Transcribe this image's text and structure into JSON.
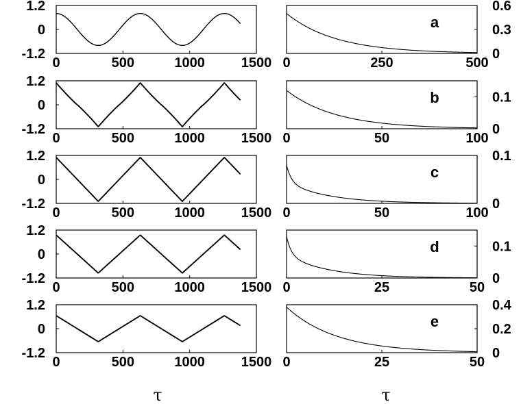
{
  "chart_data": [
    {
      "type": "line",
      "panel": "a",
      "side": "left",
      "xlim": [
        0,
        1500
      ],
      "ylim": [
        -1.2,
        1.2
      ],
      "xticks": [
        "0",
        "500",
        "1000",
        "1500"
      ],
      "yticks": [
        "1.2",
        "0",
        "-1.2"
      ],
      "wave": "sine",
      "amplitude": 0.8,
      "period": 630,
      "x_end": 1380
    },
    {
      "type": "line",
      "panel": "a",
      "side": "right",
      "label": "a",
      "xlim": [
        0,
        500
      ],
      "ylim": [
        0,
        0.6
      ],
      "xticks": [
        "0",
        "250",
        "500"
      ],
      "yticks": [
        "0.6",
        "0.3",
        "0"
      ],
      "y0": 0.5,
      "shape": "exponential-decay"
    },
    {
      "type": "line",
      "panel": "b",
      "side": "left",
      "xlim": [
        0,
        1500
      ],
      "ylim": [
        -1.2,
        1.2
      ],
      "xticks": [
        "0",
        "500",
        "1000",
        "1500"
      ],
      "yticks": [
        "1.2",
        "0",
        "-1.2"
      ],
      "wave": "rounded-triangle",
      "amplitude": 1.1,
      "period": 630,
      "x_end": 1380
    },
    {
      "type": "line",
      "panel": "b",
      "side": "right",
      "label": "b",
      "xlim": [
        0,
        100
      ],
      "ylim": [
        0,
        0.15
      ],
      "xticks": [
        "0",
        "50",
        "100"
      ],
      "yticks": [
        "0.1",
        "0"
      ],
      "y0": 0.12,
      "shape": "exponential-decay"
    },
    {
      "type": "line",
      "panel": "c",
      "side": "left",
      "xlim": [
        0,
        1500
      ],
      "ylim": [
        -1.2,
        1.2
      ],
      "xticks": [
        "0",
        "500",
        "1000",
        "1500"
      ],
      "yticks": [
        "1.2",
        "0",
        "-1.2"
      ],
      "wave": "triangle",
      "amplitude": 1.1,
      "period": 630,
      "x_end": 1380
    },
    {
      "type": "line",
      "panel": "c",
      "side": "right",
      "label": "c",
      "xlim": [
        0,
        100
      ],
      "ylim": [
        0,
        0.1
      ],
      "xticks": [
        "0",
        "50",
        "100"
      ],
      "yticks": [
        "0.1",
        "0"
      ],
      "y0": 0.08,
      "shape": "fast-decay"
    },
    {
      "type": "line",
      "panel": "d",
      "side": "left",
      "xlim": [
        0,
        1500
      ],
      "ylim": [
        -1.2,
        1.2
      ],
      "xticks": [
        "0",
        "500",
        "1000",
        "1500"
      ],
      "yticks": [
        "1.2",
        "0",
        "-1.2"
      ],
      "wave": "triangle",
      "amplitude": 0.95,
      "period": 630,
      "x_end": 1380
    },
    {
      "type": "line",
      "panel": "d",
      "side": "right",
      "label": "d",
      "xlim": [
        0,
        50
      ],
      "ylim": [
        0,
        0.15
      ],
      "xticks": [
        "0",
        "25",
        "50"
      ],
      "yticks": [
        "0.1",
        "0"
      ],
      "y0": 0.13,
      "shape": "fast-decay"
    },
    {
      "type": "line",
      "panel": "e",
      "side": "left",
      "xlim": [
        0,
        1500
      ],
      "ylim": [
        -1.2,
        1.2
      ],
      "xticks": [
        "0",
        "500",
        "1000",
        "1500"
      ],
      "yticks": [
        "1.2",
        "0",
        "-1.2"
      ],
      "wave": "triangle",
      "amplitude": 0.65,
      "period": 630,
      "x_end": 1380
    },
    {
      "type": "line",
      "panel": "e",
      "side": "right",
      "label": "e",
      "xlim": [
        0,
        50
      ],
      "ylim": [
        0,
        0.4
      ],
      "xticks": [
        "0",
        "25",
        "50"
      ],
      "yticks": [
        "0.4",
        "0.2",
        "0"
      ],
      "y0": 0.38,
      "shape": "exponential-decay"
    }
  ],
  "xlabel_left": "τ",
  "xlabel_right": "τ"
}
